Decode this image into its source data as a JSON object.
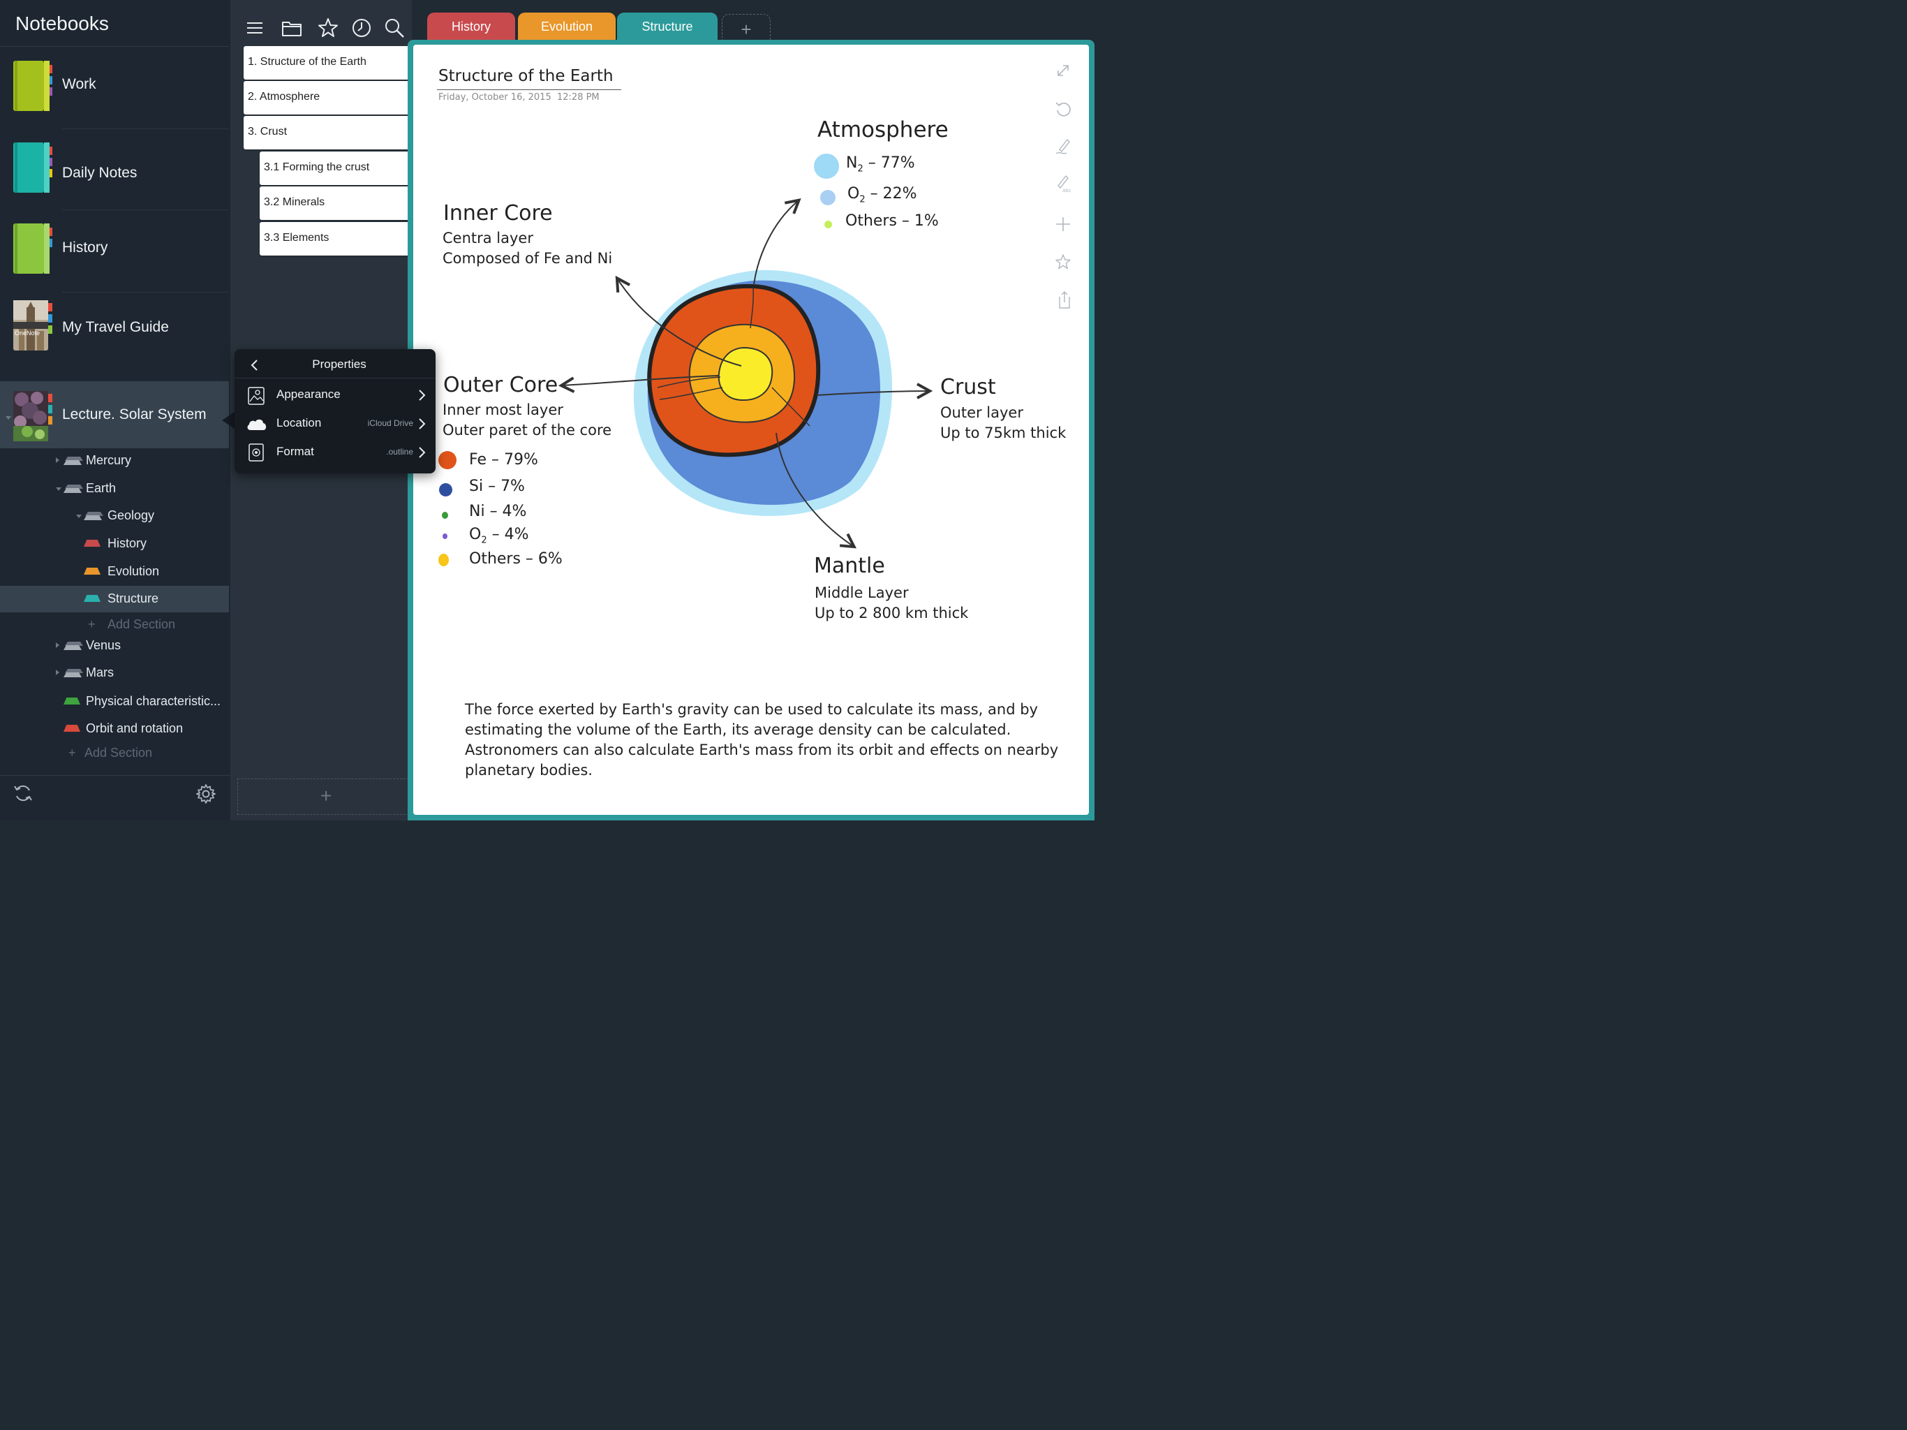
{
  "sidebar": {
    "title": "Notebooks",
    "notebooks": [
      {
        "label": "Work",
        "color": "#a4c01d"
      },
      {
        "label": "Daily Notes",
        "color": "#1bb3a6"
      },
      {
        "label": "History",
        "color": "#8cc63f"
      },
      {
        "label": "My Travel Guide",
        "cover_text": "OneNote"
      },
      {
        "label": "Lecture. Solar System"
      }
    ],
    "tree": [
      {
        "label": "Mercury"
      },
      {
        "label": "Earth"
      },
      {
        "label": "Geology"
      },
      {
        "label": "History",
        "color": "#c94a4d"
      },
      {
        "label": "Evolution",
        "color": "#e9962a"
      },
      {
        "label": "Structure",
        "color": "#2ab0ad"
      },
      {
        "label": "Add Section"
      },
      {
        "label": "Venus"
      },
      {
        "label": "Mars"
      },
      {
        "label": "Physical characteristic...",
        "color": "#3fa33f"
      },
      {
        "label": "Orbit and rotation",
        "color": "#d84a3b"
      },
      {
        "label": "Add Section"
      }
    ],
    "add_glyph": "+"
  },
  "pages": [
    {
      "label": "1. Structure of the Earth"
    },
    {
      "label": "2. Atmosphere"
    },
    {
      "label": "3. Crust"
    },
    {
      "label": "3.1 Forming the crust"
    },
    {
      "label": "3.2 Minerals"
    },
    {
      "label": "3.3 Elements"
    }
  ],
  "properties": {
    "title": "Properties",
    "rows": [
      {
        "label": "Appearance",
        "value": ""
      },
      {
        "label": "Location",
        "value": "iCloud Drive"
      },
      {
        "label": "Format",
        "value": ".outline"
      }
    ]
  },
  "tabs": [
    {
      "label": "History",
      "color": "#c94a4d"
    },
    {
      "label": "Evolution",
      "color": "#e9962a"
    },
    {
      "label": "Structure",
      "color": "#2c9a9a"
    },
    {
      "label": "+"
    }
  ],
  "note": {
    "title": "Structure of the Earth",
    "date": "Friday, October 16, 2015",
    "time": "12:28 PM",
    "atmosphere": {
      "heading": "Atmosphere",
      "items": [
        {
          "base": "N",
          "sub": "2",
          "rest": " – 77%",
          "color": "#9ed9f6"
        },
        {
          "base": "O",
          "sub": "2",
          "rest": " – 22%",
          "color": "#a9cff2"
        },
        {
          "base": "Others – 1%",
          "sub": "",
          "rest": "",
          "color": "#c5ef5a"
        }
      ]
    },
    "inner_core": {
      "heading": "Inner Core",
      "line1": "Centra layer",
      "line2": "Composed of Fe and Ni"
    },
    "outer_core": {
      "heading": "Outer Core",
      "line1": "Inner most layer",
      "line2": "Outer paret of the core",
      "items": [
        {
          "base": "Fe – 79%",
          "sub": "",
          "rest": "",
          "color": "#e0541a"
        },
        {
          "base": "Si – 7%",
          "sub": "",
          "rest": "",
          "color": "#2e4fa0"
        },
        {
          "base": "Ni – 4%",
          "sub": "",
          "rest": "",
          "color": "#3a9a3a"
        },
        {
          "base": "O",
          "sub": "2",
          "rest": " – 4%",
          "color": "#7b5ccf"
        },
        {
          "base": "Others – 6%",
          "sub": "",
          "rest": "",
          "color": "#f7c51b"
        }
      ]
    },
    "crust": {
      "heading": "Crust",
      "line1": "Outer layer",
      "line2": "Up to 75km thick"
    },
    "mantle": {
      "heading": "Mantle",
      "line1": "Middle Layer",
      "line2": "Up to 2 800 km thick"
    },
    "paragraph": [
      "The force exerted by Earth's gravity can be used to calculate its mass, and by",
      "estimating the volume of the Earth, its average density can be calculated.",
      "Astronomers can also calculate Earth's mass from its orbit and effects on nearby",
      "planetary bodies."
    ]
  }
}
